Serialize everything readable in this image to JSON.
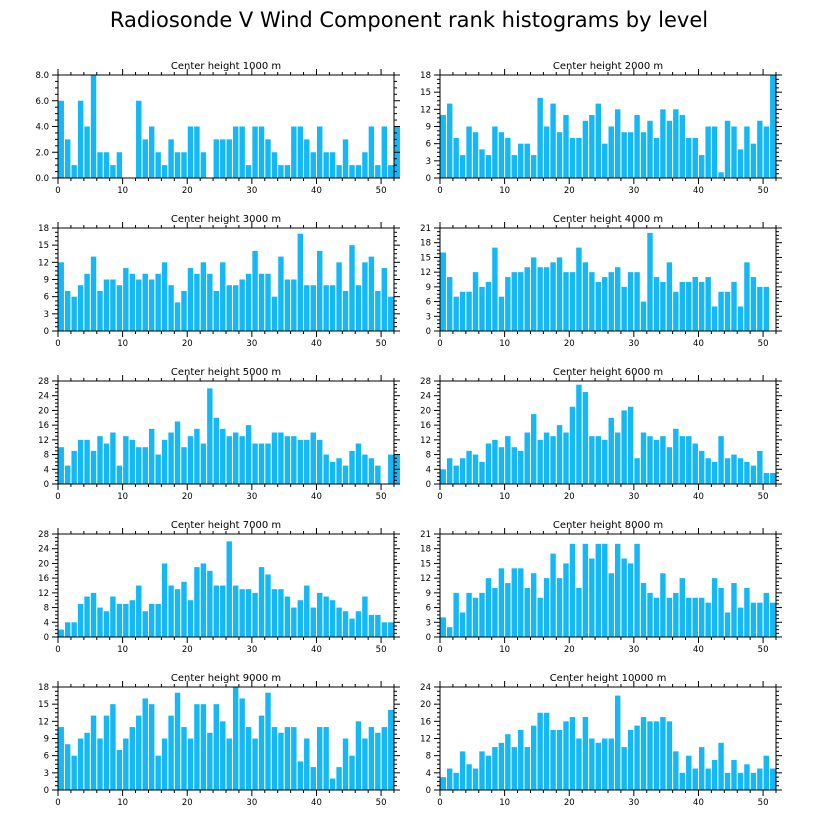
{
  "title": "Radiosonde V Wind Component rank histograms by level",
  "colors": {
    "bar": "#13B8F5",
    "axis": "#000000"
  },
  "chart_data": [
    {
      "type": "bar",
      "title": "Center height 1000 m",
      "xlim": [
        0,
        52
      ],
      "ylim": [
        0,
        8
      ],
      "yticks": [
        0,
        2,
        4,
        6,
        8
      ],
      "ytick_labels": [
        "0.0",
        "2.0",
        "4.0",
        "6.0",
        "8.0"
      ],
      "xticks": [
        0,
        10,
        20,
        30,
        40,
        50
      ],
      "values": [
        6,
        3,
        1,
        6,
        4,
        8,
        2,
        2,
        1,
        2,
        0,
        0,
        6,
        3,
        4,
        2,
        1,
        3,
        2,
        2,
        4,
        4,
        2,
        0,
        3,
        3,
        3,
        4,
        4,
        1,
        4,
        4,
        3,
        2,
        1,
        1,
        4,
        4,
        3,
        2,
        4,
        2,
        2,
        1,
        3,
        1,
        1,
        2,
        4,
        1,
        4,
        1,
        4
      ]
    },
    {
      "type": "bar",
      "title": "Center height 2000 m",
      "xlim": [
        0,
        52
      ],
      "ylim": [
        0,
        18
      ],
      "yticks": [
        0,
        3,
        6,
        9,
        12,
        15,
        18
      ],
      "ytick_labels": [
        "0",
        "3",
        "6",
        "9",
        "12",
        "15",
        "18"
      ],
      "xticks": [
        0,
        10,
        20,
        30,
        40,
        50
      ],
      "values": [
        11,
        13,
        7,
        4,
        9,
        8,
        5,
        4,
        9,
        8,
        7,
        4,
        6,
        6,
        4,
        14,
        9,
        13,
        8,
        11,
        7,
        7,
        10,
        11,
        13,
        6,
        9,
        12,
        8,
        8,
        11,
        8,
        10,
        7,
        12,
        10,
        12,
        11,
        7,
        7,
        4,
        9,
        9,
        1,
        10,
        9,
        5,
        9,
        6,
        10,
        9,
        18
      ]
    },
    {
      "type": "bar",
      "title": "Center height 3000 m",
      "xlim": [
        0,
        52
      ],
      "ylim": [
        0,
        18
      ],
      "yticks": [
        0,
        3,
        6,
        9,
        12,
        15,
        18
      ],
      "ytick_labels": [
        "0",
        "3",
        "6",
        "9",
        "12",
        "15",
        "18"
      ],
      "xticks": [
        0,
        10,
        20,
        30,
        40,
        50
      ],
      "values": [
        12,
        7,
        6,
        8,
        10,
        13,
        7,
        9,
        9,
        8,
        11,
        10,
        9,
        10,
        9,
        10,
        12,
        8,
        5,
        7,
        11,
        10,
        12,
        10,
        7,
        12,
        8,
        8,
        9,
        10,
        14,
        10,
        10,
        6,
        13,
        9,
        9,
        17,
        8,
        8,
        14,
        8,
        8,
        12,
        7,
        15,
        8,
        12,
        13,
        7,
        11,
        6
      ]
    },
    {
      "type": "bar",
      "title": "Center height 4000 m",
      "xlim": [
        0,
        52
      ],
      "ylim": [
        0,
        21
      ],
      "yticks": [
        0,
        3,
        6,
        9,
        12,
        15,
        18,
        21
      ],
      "ytick_labels": [
        "0",
        "3",
        "6",
        "9",
        "12",
        "15",
        "18",
        "21"
      ],
      "xticks": [
        0,
        10,
        20,
        30,
        40,
        50
      ],
      "values": [
        16,
        11,
        7,
        8,
        8,
        12,
        9,
        10,
        17,
        7,
        11,
        12,
        12,
        13,
        15,
        13,
        13,
        14,
        15,
        12,
        12,
        17,
        14,
        12,
        10,
        11,
        12,
        13,
        9,
        12,
        12,
        6,
        20,
        11,
        10,
        14,
        8,
        10,
        10,
        11,
        10,
        11,
        5,
        8,
        8,
        10,
        5,
        14,
        11,
        9,
        9
      ]
    },
    {
      "type": "bar",
      "title": "Center height 5000 m",
      "xlim": [
        0,
        52
      ],
      "ylim": [
        0,
        28
      ],
      "yticks": [
        0,
        4,
        8,
        12,
        16,
        20,
        24,
        28
      ],
      "ytick_labels": [
        "0",
        "4",
        "8",
        "12",
        "16",
        "20",
        "24",
        "28"
      ],
      "xticks": [
        0,
        10,
        20,
        30,
        40,
        50
      ],
      "values": [
        10,
        5,
        9,
        12,
        12,
        9,
        13,
        11,
        14,
        5,
        13,
        12,
        10,
        10,
        15,
        8,
        12,
        14,
        17,
        10,
        13,
        15,
        11,
        26,
        18,
        15,
        13,
        14,
        13,
        16,
        11,
        11,
        11,
        14,
        14,
        13,
        13,
        12,
        12,
        14,
        12,
        8,
        6,
        7,
        5,
        9,
        11,
        8,
        7,
        5,
        0,
        8,
        8
      ]
    },
    {
      "type": "bar",
      "title": "Center height 6000 m",
      "xlim": [
        0,
        52
      ],
      "ylim": [
        0,
        28
      ],
      "yticks": [
        0,
        4,
        8,
        12,
        16,
        20,
        24,
        28
      ],
      "ytick_labels": [
        "0",
        "4",
        "8",
        "12",
        "16",
        "20",
        "24",
        "28"
      ],
      "xticks": [
        0,
        10,
        20,
        30,
        40,
        50
      ],
      "values": [
        4,
        7,
        5,
        7,
        9,
        8,
        6,
        11,
        12,
        10,
        13,
        10,
        9,
        14,
        19,
        12,
        14,
        13,
        16,
        14,
        21,
        27,
        25,
        13,
        13,
        12,
        18,
        14,
        20,
        21,
        7,
        14,
        13,
        12,
        13,
        10,
        15,
        13,
        13,
        11,
        9,
        7,
        6,
        13,
        7,
        8,
        7,
        6,
        5,
        9,
        3,
        3
      ]
    },
    {
      "type": "bar",
      "title": "Center height 7000 m",
      "xlim": [
        0,
        52
      ],
      "ylim": [
        0,
        28
      ],
      "yticks": [
        0,
        4,
        8,
        12,
        16,
        20,
        24,
        28
      ],
      "ytick_labels": [
        "0",
        "4",
        "8",
        "12",
        "16",
        "20",
        "24",
        "28"
      ],
      "xticks": [
        0,
        10,
        20,
        30,
        40,
        50
      ],
      "values": [
        2,
        4,
        4,
        9,
        11,
        12,
        8,
        7,
        11,
        9,
        9,
        10,
        14,
        7,
        9,
        9,
        20,
        14,
        13,
        15,
        10,
        19,
        20,
        18,
        14,
        14,
        26,
        14,
        13,
        13,
        12,
        19,
        17,
        13,
        13,
        11,
        8,
        10,
        14,
        8,
        12,
        11,
        10,
        8,
        7,
        5,
        7,
        11,
        6,
        6,
        4,
        4
      ]
    },
    {
      "type": "bar",
      "title": "Center height 8000 m",
      "xlim": [
        0,
        52
      ],
      "ylim": [
        0,
        21
      ],
      "yticks": [
        0,
        3,
        6,
        9,
        12,
        15,
        18,
        21
      ],
      "ytick_labels": [
        "0",
        "3",
        "6",
        "9",
        "12",
        "15",
        "18",
        "21"
      ],
      "xticks": [
        0,
        10,
        20,
        30,
        40,
        50
      ],
      "values": [
        4,
        2,
        9,
        5,
        9,
        8,
        9,
        12,
        10,
        14,
        11,
        14,
        14,
        10,
        13,
        8,
        12,
        17,
        12,
        15,
        19,
        10,
        19,
        16,
        19,
        19,
        13,
        19,
        16,
        15,
        19,
        11,
        9,
        8,
        13,
        8,
        9,
        12,
        8,
        8,
        8,
        7,
        12,
        10,
        5,
        11,
        6,
        10,
        7,
        7,
        9,
        7
      ]
    },
    {
      "type": "bar",
      "title": "Center height 9000 m",
      "xlim": [
        0,
        52
      ],
      "ylim": [
        0,
        18
      ],
      "yticks": [
        0,
        3,
        6,
        9,
        12,
        15,
        18
      ],
      "ytick_labels": [
        "0",
        "3",
        "6",
        "9",
        "12",
        "15",
        "18"
      ],
      "xticks": [
        0,
        10,
        20,
        30,
        40,
        50
      ],
      "values": [
        11,
        8,
        6,
        9,
        10,
        13,
        9,
        13,
        15,
        7,
        9,
        11,
        13,
        16,
        15,
        6,
        9,
        13,
        17,
        11,
        9,
        15,
        15,
        10,
        15,
        12,
        9,
        18,
        16,
        11,
        9,
        13,
        17,
        11,
        10,
        11,
        11,
        5,
        9,
        4,
        11,
        11,
        2,
        4,
        9,
        6,
        12,
        9,
        11,
        10,
        11,
        14
      ]
    },
    {
      "type": "bar",
      "title": "Center height 10000 m",
      "xlim": [
        0,
        52
      ],
      "ylim": [
        0,
        24
      ],
      "yticks": [
        0,
        4,
        8,
        12,
        16,
        20,
        24
      ],
      "ytick_labels": [
        "0",
        "4",
        "8",
        "12",
        "16",
        "20",
        "24"
      ],
      "xticks": [
        0,
        10,
        20,
        30,
        40,
        50
      ],
      "values": [
        3,
        5,
        4,
        9,
        6,
        5,
        9,
        8,
        10,
        11,
        13,
        10,
        14,
        10,
        15,
        18,
        18,
        14,
        14,
        16,
        17,
        12,
        17,
        12,
        11,
        12,
        12,
        22,
        10,
        14,
        15,
        17,
        16,
        16,
        17,
        16,
        9,
        4,
        8,
        5,
        10,
        5,
        7,
        11,
        4,
        7,
        4,
        6,
        4,
        5,
        8,
        5
      ]
    }
  ]
}
